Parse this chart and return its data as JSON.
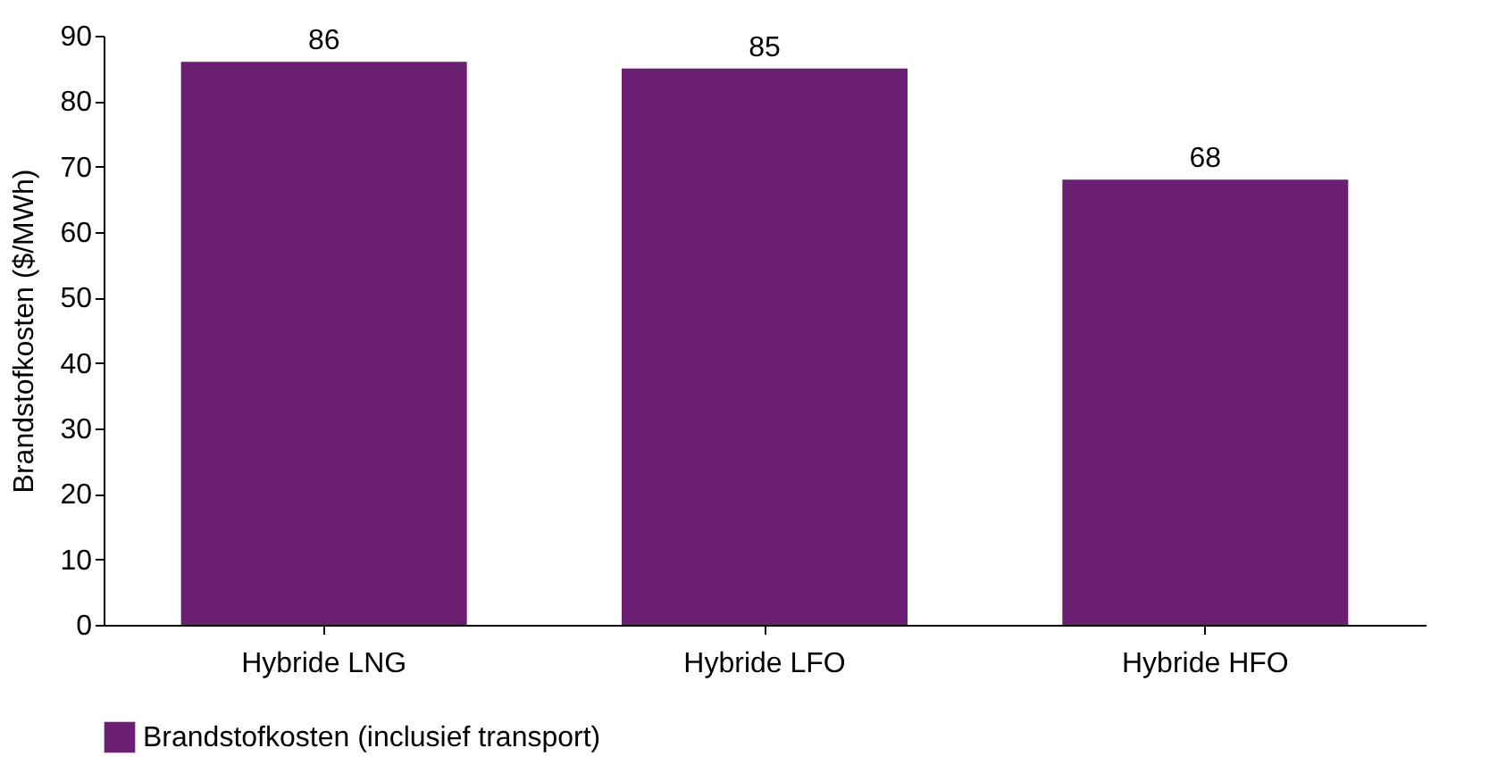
{
  "chart_data": {
    "type": "bar",
    "ylabel": "Brandstofkosten ($/MWh)",
    "categories": [
      "Hybride LNG",
      "Hybride LFO",
      "Hybride HFO"
    ],
    "series": [
      {
        "name": "Brandstofkosten (inclusief transport)",
        "color": "#6b1f72",
        "values": [
          86,
          85,
          68
        ]
      }
    ],
    "ylim": [
      0,
      90
    ],
    "yticks": [
      0,
      10,
      20,
      30,
      40,
      50,
      60,
      70,
      80,
      90
    ],
    "data_labels": true,
    "grid": false,
    "legend": "bottom left"
  }
}
